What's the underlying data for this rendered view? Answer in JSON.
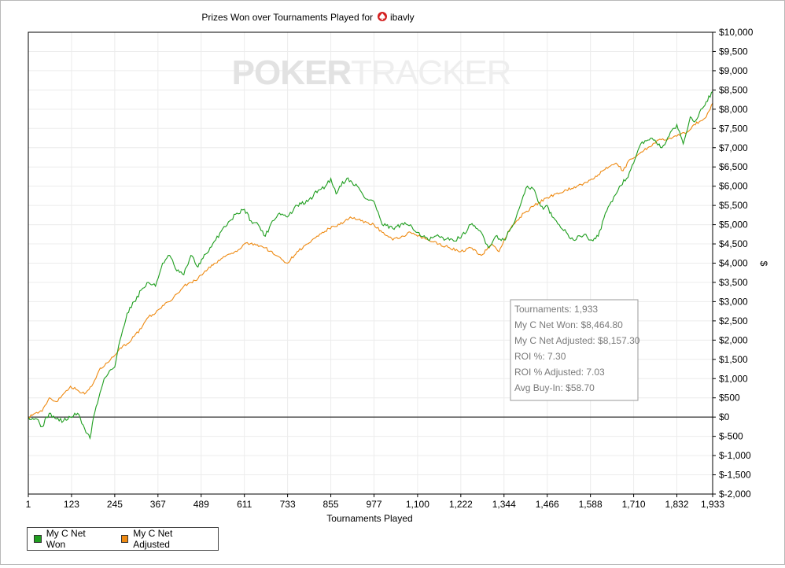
{
  "chart_data": {
    "type": "line",
    "title": "Prizes Won over Tournaments Played for",
    "player": "ibavly",
    "watermark": {
      "part1": "POKER",
      "part2": "TRACKER"
    },
    "xlabel": "Tournaments Played",
    "ylabel": "$",
    "xlim": [
      1,
      1933
    ],
    "ylim": [
      -2000,
      10000
    ],
    "x_ticks": [
      1,
      123,
      245,
      367,
      489,
      611,
      733,
      855,
      977,
      1100,
      1222,
      1344,
      1466,
      1588,
      1710,
      1832,
      1933
    ],
    "x_tick_labels": [
      "1",
      "123",
      "245",
      "367",
      "489",
      "611",
      "733",
      "855",
      "977",
      "1,100",
      "1,222",
      "1,344",
      "1,466",
      "1,588",
      "1,710",
      "1,832",
      "1,933"
    ],
    "y_ticks": [
      -2000,
      -1500,
      -1000,
      -500,
      0,
      500,
      1000,
      1500,
      2000,
      2500,
      3000,
      3500,
      4000,
      4500,
      5000,
      5500,
      6000,
      6500,
      7000,
      7500,
      8000,
      8500,
      9000,
      9500,
      10000
    ],
    "y_tick_labels": [
      "$-2,000",
      "$-1,500",
      "$-1,000",
      "$-500",
      "$0",
      "$500",
      "$1,000",
      "$1,500",
      "$2,000",
      "$2,500",
      "$3,000",
      "$3,500",
      "$4,000",
      "$4,500",
      "$5,000",
      "$5,500",
      "$6,000",
      "$6,500",
      "$7,000",
      "$7,500",
      "$8,000",
      "$8,500",
      "$9,000",
      "$9,500",
      "$10,000"
    ],
    "grid": true,
    "legend_position": "bottom-left",
    "series": [
      {
        "name": "My C Net Won",
        "color": "#1f9e1f",
        "x": [
          1,
          25,
          40,
          60,
          80,
          100,
          120,
          140,
          160,
          175,
          185,
          200,
          215,
          230,
          245,
          260,
          280,
          300,
          320,
          340,
          360,
          380,
          400,
          420,
          440,
          460,
          480,
          490,
          510,
          530,
          550,
          570,
          590,
          611,
          630,
          650,
          670,
          690,
          710,
          733,
          760,
          790,
          820,
          840,
          855,
          870,
          880,
          900,
          915,
          930,
          950,
          977,
          1000,
          1030,
          1060,
          1080,
          1100,
          1130,
          1160,
          1190,
          1222,
          1250,
          1280,
          1300,
          1320,
          1344,
          1370,
          1390,
          1410,
          1430,
          1440,
          1455,
          1466,
          1480,
          1500,
          1520,
          1540,
          1560,
          1575,
          1588,
          1610,
          1630,
          1650,
          1670,
          1690,
          1710,
          1730,
          1750,
          1770,
          1790,
          1810,
          1832,
          1850,
          1870,
          1885,
          1900,
          1915,
          1933
        ],
        "values": [
          0,
          -50,
          -250,
          100,
          -50,
          -100,
          0,
          100,
          -300,
          -550,
          0,
          500,
          1000,
          1200,
          1300,
          2000,
          2700,
          3000,
          3300,
          3500,
          3400,
          4000,
          4200,
          3800,
          3700,
          4200,
          3900,
          4100,
          4300,
          4600,
          4900,
          5100,
          5300,
          5400,
          5100,
          5000,
          4700,
          5100,
          5300,
          5200,
          5500,
          5600,
          5900,
          6000,
          6200,
          5800,
          6000,
          6200,
          6100,
          6000,
          5700,
          5600,
          5000,
          4900,
          5000,
          5000,
          4800,
          4600,
          4700,
          4600,
          4650,
          5000,
          4800,
          4400,
          4700,
          4600,
          5000,
          5500,
          6000,
          5900,
          5600,
          5400,
          5500,
          5200,
          5000,
          4800,
          4600,
          4700,
          4750,
          4600,
          4700,
          5300,
          5600,
          6000,
          6200,
          6600,
          7100,
          7200,
          7200,
          7000,
          7300,
          7600,
          7100,
          7800,
          7700,
          8000,
          8200,
          8465
        ]
      },
      {
        "name": "My C Net Adjusted",
        "color": "#ee8a12",
        "x": [
          1,
          20,
          40,
          60,
          80,
          100,
          120,
          140,
          160,
          180,
          200,
          220,
          245,
          260,
          280,
          300,
          320,
          340,
          360,
          380,
          400,
          420,
          440,
          460,
          480,
          500,
          530,
          560,
          590,
          611,
          640,
          670,
          700,
          733,
          760,
          790,
          820,
          850,
          880,
          910,
          940,
          977,
          1000,
          1030,
          1060,
          1080,
          1100,
          1130,
          1160,
          1190,
          1222,
          1250,
          1280,
          1310,
          1330,
          1344,
          1370,
          1400,
          1430,
          1466,
          1490,
          1520,
          1550,
          1580,
          1610,
          1640,
          1660,
          1680,
          1700,
          1720,
          1750,
          1780,
          1800,
          1832,
          1860,
          1880,
          1900,
          1915,
          1933
        ],
        "values": [
          0,
          100,
          150,
          500,
          400,
          600,
          800,
          700,
          600,
          800,
          1200,
          1400,
          1600,
          1800,
          1900,
          2100,
          2300,
          2600,
          2700,
          2900,
          3000,
          3200,
          3400,
          3500,
          3600,
          3800,
          4000,
          4200,
          4300,
          4500,
          4500,
          4400,
          4200,
          4000,
          4300,
          4500,
          4700,
          4900,
          5000,
          5200,
          5100,
          5000,
          4800,
          4600,
          4700,
          4800,
          4700,
          4600,
          4500,
          4400,
          4300,
          4400,
          4200,
          4500,
          4300,
          4600,
          5000,
          5300,
          5500,
          5700,
          5800,
          5900,
          6000,
          6100,
          6300,
          6500,
          6600,
          6400,
          6700,
          6800,
          7000,
          7200,
          7200,
          7300,
          7400,
          7600,
          7700,
          7800,
          8157
        ]
      }
    ]
  },
  "tooltip": {
    "lines": [
      "Tournaments: 1,933",
      "My C Net Won: $8,464.80",
      "My C Net Adjusted: $8,157.30",
      "ROI %: 7.30",
      "ROI % Adjusted: 7.03",
      "Avg Buy-In: $58.70"
    ]
  },
  "legend": {
    "items": [
      {
        "label": "My C Net Won",
        "color": "#1f9e1f"
      },
      {
        "label": "My C Net Adjusted",
        "color": "#ee8a12"
      }
    ]
  }
}
